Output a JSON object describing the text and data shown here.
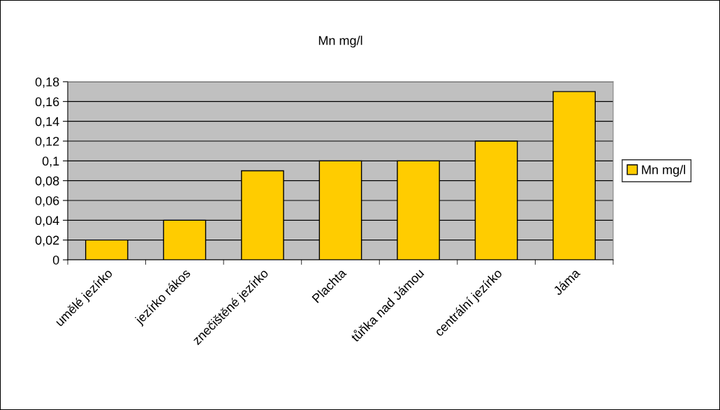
{
  "chart_data": {
    "type": "bar",
    "title": "Mn mg/l",
    "categories": [
      "umělé jezírko",
      "jezírko rákos",
      "znečištěné jezírko",
      "Plachta",
      "tůňka nad Jámou",
      "centrální jezírko",
      "Jáma"
    ],
    "series": [
      {
        "name": "Mn mg/l",
        "color": "#ffcc00",
        "values": [
          0.02,
          0.04,
          0.09,
          0.1,
          0.1,
          0.12,
          0.17
        ]
      }
    ],
    "ylim": [
      0,
      0.18
    ],
    "yticks": [
      0,
      {
        "value": 0.02,
        "label": "0,02"
      },
      {
        "value": 0.04,
        "label": "0,04"
      },
      {
        "value": 0.06,
        "label": "0,06"
      },
      {
        "value": 0.08,
        "label": "0,08"
      },
      {
        "value": 0.1,
        "label": "0,1"
      },
      {
        "value": 0.12,
        "label": "0,12"
      },
      {
        "value": 0.14,
        "label": "0,14"
      },
      {
        "value": 0.16,
        "label": "0,16"
      },
      {
        "value": 0.18,
        "label": "0,18"
      }
    ],
    "grid": "y",
    "legend": "right"
  }
}
